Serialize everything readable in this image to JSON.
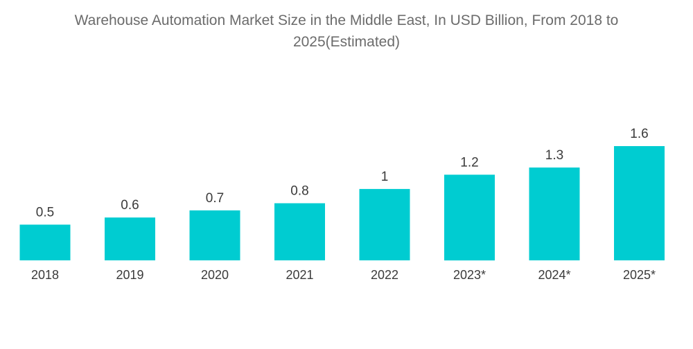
{
  "chart_data": {
    "type": "bar",
    "title": "Warehouse Automation Market Size in the Middle East, In USD Billion, From 2018 to 2025(Estimated)",
    "xlabel": "",
    "ylabel": "",
    "categories": [
      "2018",
      "2019",
      "2020",
      "2021",
      "2022",
      "2023*",
      "2024*",
      "2025*"
    ],
    "values": [
      0.5,
      0.6,
      0.7,
      0.8,
      1,
      1.2,
      1.3,
      1.6
    ],
    "value_labels": [
      "0.5",
      "0.6",
      "0.7",
      "0.8",
      "1",
      "1.2",
      "1.3",
      "1.6"
    ],
    "ylim": [
      0,
      1.6
    ],
    "grid": false,
    "legend": "none",
    "bar_color": "#00ccd1"
  }
}
